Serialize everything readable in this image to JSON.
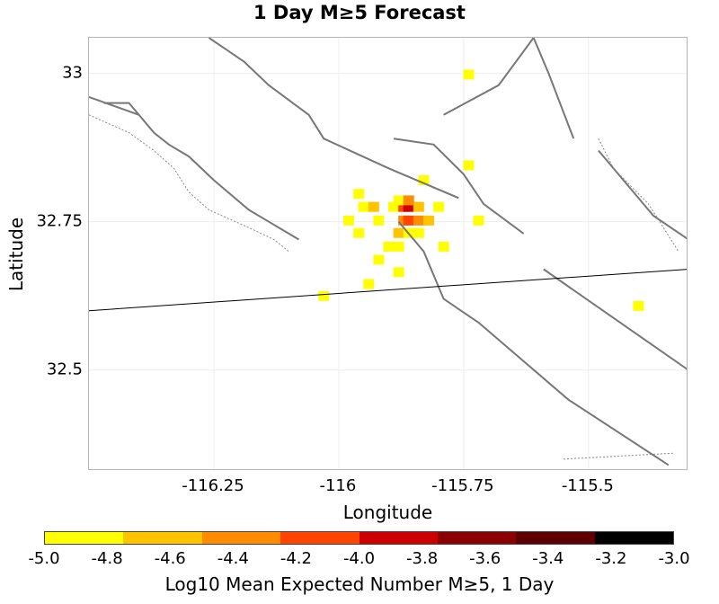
{
  "chart_data": {
    "type": "heatmap",
    "title": "1 Day M≥5 Forecast",
    "xlabel": "Longitude",
    "ylabel": "Latitude",
    "xlim": [
      -116.5,
      -115.3
    ],
    "ylim": [
      32.33,
      33.06
    ],
    "x_ticks": [
      {
        "value": -116.25,
        "label": "-116.25"
      },
      {
        "value": -116.0,
        "label": "-116"
      },
      {
        "value": -115.75,
        "label": "-115.75"
      },
      {
        "value": -115.5,
        "label": "-115.5"
      }
    ],
    "y_ticks": [
      {
        "value": 33.0,
        "label": "33"
      },
      {
        "value": 32.75,
        "label": "32.75"
      },
      {
        "value": 32.5,
        "label": "32.5"
      }
    ],
    "colorbar": {
      "label": "Log10 Mean Expected Number M≥5, 1 Day",
      "range": [
        -5.0,
        -3.0
      ],
      "tick_labels": [
        "-5.0",
        "-4.8",
        "-4.6",
        "-4.4",
        "-4.2",
        "-4.0",
        "-3.8",
        "-3.6",
        "-3.4",
        "-3.2",
        "-3.0"
      ],
      "colors": [
        "#ffff00",
        "#ffc300",
        "#ff8c00",
        "#ff4500",
        "#cc0000",
        "#8b0000",
        "#5e0000",
        "#000000"
      ]
    },
    "cells": [
      {
        "lon": -115.74,
        "lat": 32.998,
        "value": -4.95
      },
      {
        "lon": -115.83,
        "lat": 32.82,
        "value": -4.95
      },
      {
        "lon": -115.74,
        "lat": 32.845,
        "value": -4.95
      },
      {
        "lon": -115.96,
        "lat": 32.797,
        "value": -4.95
      },
      {
        "lon": -115.95,
        "lat": 32.775,
        "value": -4.95
      },
      {
        "lon": -115.93,
        "lat": 32.775,
        "value": -4.6
      },
      {
        "lon": -115.89,
        "lat": 32.775,
        "value": -4.9
      },
      {
        "lon": -115.87,
        "lat": 32.775,
        "value": -4.1
      },
      {
        "lon": -115.86,
        "lat": 32.775,
        "value": -3.8
      },
      {
        "lon": -115.84,
        "lat": 32.775,
        "value": -4.6
      },
      {
        "lon": -115.8,
        "lat": 32.775,
        "value": -4.9
      },
      {
        "lon": -115.88,
        "lat": 32.786,
        "value": -4.9
      },
      {
        "lon": -115.86,
        "lat": 32.786,
        "value": -4.5
      },
      {
        "lon": -115.98,
        "lat": 32.752,
        "value": -4.95
      },
      {
        "lon": -115.92,
        "lat": 32.752,
        "value": -4.9
      },
      {
        "lon": -115.87,
        "lat": 32.752,
        "value": -4.3
      },
      {
        "lon": -115.86,
        "lat": 32.752,
        "value": -4.1
      },
      {
        "lon": -115.84,
        "lat": 32.752,
        "value": -4.4
      },
      {
        "lon": -115.82,
        "lat": 32.752,
        "value": -4.6
      },
      {
        "lon": -115.72,
        "lat": 32.752,
        "value": -4.95
      },
      {
        "lon": -115.96,
        "lat": 32.731,
        "value": -4.95
      },
      {
        "lon": -115.88,
        "lat": 32.731,
        "value": -4.7
      },
      {
        "lon": -115.86,
        "lat": 32.731,
        "value": -4.8
      },
      {
        "lon": -115.84,
        "lat": 32.731,
        "value": -4.9
      },
      {
        "lon": -115.9,
        "lat": 32.708,
        "value": -4.9
      },
      {
        "lon": -115.88,
        "lat": 32.708,
        "value": -4.9
      },
      {
        "lon": -115.79,
        "lat": 32.708,
        "value": -4.95
      },
      {
        "lon": -115.92,
        "lat": 32.686,
        "value": -4.95
      },
      {
        "lon": -115.88,
        "lat": 32.665,
        "value": -4.95
      },
      {
        "lon": -115.94,
        "lat": 32.645,
        "value": -4.95
      },
      {
        "lon": -116.03,
        "lat": 32.625,
        "value": -4.95
      },
      {
        "lon": -115.4,
        "lat": 32.608,
        "value": -4.95
      }
    ],
    "fault_traces": [
      {
        "style": "solid",
        "points": [
          [
            -116.26,
            33.06
          ],
          [
            -116.19,
            33.02
          ],
          [
            -116.14,
            32.98
          ],
          [
            -116.06,
            32.93
          ],
          [
            -116.03,
            32.89
          ],
          [
            -115.9,
            32.84
          ],
          [
            -115.76,
            32.79
          ]
        ]
      },
      {
        "style": "solid",
        "points": [
          [
            -116.5,
            32.96
          ],
          [
            -116.4,
            32.93
          ]
        ]
      },
      {
        "style": "solid",
        "points": [
          [
            -115.89,
            32.89
          ],
          [
            -115.81,
            32.88
          ],
          [
            -115.75,
            32.83
          ],
          [
            -115.71,
            32.78
          ],
          [
            -115.63,
            32.73
          ]
        ]
      },
      {
        "style": "solid",
        "points": [
          [
            -115.79,
            32.93
          ],
          [
            -115.68,
            32.98
          ],
          [
            -115.61,
            33.06
          ]
        ]
      },
      {
        "style": "solid",
        "points": [
          [
            -115.61,
            33.06
          ],
          [
            -115.58,
            33.0
          ],
          [
            -115.53,
            32.89
          ]
        ]
      },
      {
        "style": "solid",
        "points": [
          [
            -115.88,
            32.75
          ],
          [
            -115.83,
            32.7
          ],
          [
            -115.79,
            32.62
          ],
          [
            -115.72,
            32.58
          ],
          [
            -115.54,
            32.45
          ],
          [
            -115.34,
            32.34
          ]
        ]
      },
      {
        "style": "solid",
        "points": [
          [
            -115.48,
            32.87
          ],
          [
            -115.37,
            32.76
          ],
          [
            -115.3,
            32.72
          ]
        ]
      },
      {
        "style": "solid",
        "points": [
          [
            -115.59,
            32.67
          ],
          [
            -115.3,
            32.5
          ]
        ]
      },
      {
        "style": "solid",
        "points": [
          [
            -116.47,
            32.95
          ],
          [
            -116.42,
            32.95
          ],
          [
            -116.37,
            32.9
          ],
          [
            -116.34,
            32.88
          ],
          [
            -116.3,
            32.86
          ],
          [
            -116.25,
            32.82
          ],
          [
            -116.18,
            32.77
          ],
          [
            -116.14,
            32.75
          ],
          [
            -116.08,
            32.72
          ]
        ]
      },
      {
        "style": "dotted",
        "points": [
          [
            -116.5,
            32.93
          ],
          [
            -116.42,
            32.9
          ],
          [
            -116.37,
            32.87
          ],
          [
            -116.33,
            32.84
          ],
          [
            -116.3,
            32.8
          ],
          [
            -116.26,
            32.77
          ],
          [
            -116.18,
            32.74
          ],
          [
            -116.13,
            32.72
          ],
          [
            -116.1,
            32.7
          ]
        ]
      },
      {
        "style": "dotted",
        "points": [
          [
            -115.48,
            32.89
          ],
          [
            -115.45,
            32.84
          ],
          [
            -115.38,
            32.78
          ],
          [
            -115.32,
            32.7
          ]
        ]
      },
      {
        "style": "dotted",
        "points": [
          [
            -115.55,
            32.35
          ],
          [
            -115.33,
            32.36
          ]
        ]
      },
      {
        "style": "thin",
        "points": [
          [
            -116.5,
            32.6
          ],
          [
            -115.3,
            32.67
          ]
        ]
      }
    ]
  }
}
